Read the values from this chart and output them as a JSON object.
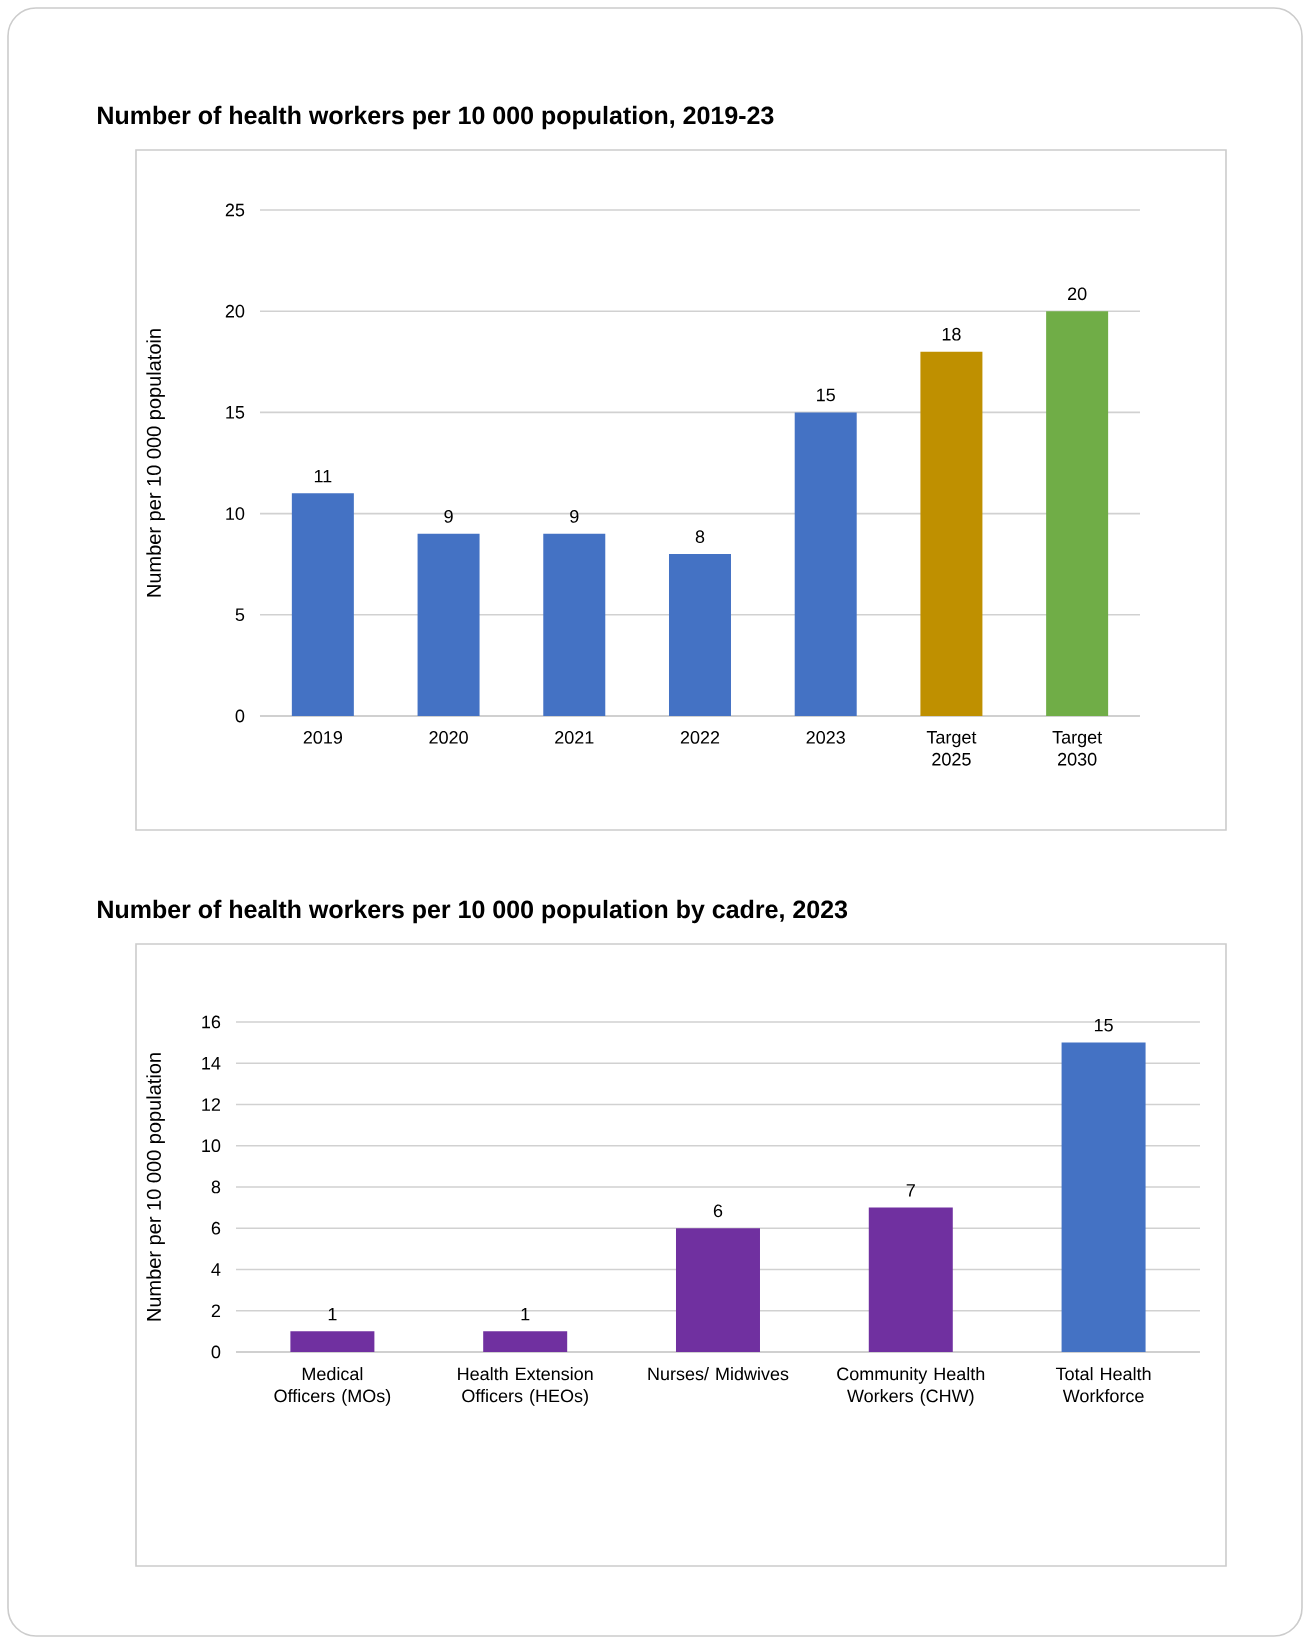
{
  "chart_data": [
    {
      "type": "bar",
      "title": "Number of health workers per 10 000 population, 2019-23",
      "ylabel": "Number per 10 000 populatoin",
      "categories": [
        "2019",
        "2020",
        "2021",
        "2022",
        "2023",
        "Target 2025",
        "Target 2030"
      ],
      "values": [
        11,
        9,
        9,
        8,
        15,
        18,
        20
      ],
      "colors": [
        "#4472c4",
        "#4472c4",
        "#4472c4",
        "#4472c4",
        "#4472c4",
        "#bf9000",
        "#70ad47"
      ],
      "ylim": [
        0,
        25
      ],
      "yticks": [
        0,
        5,
        10,
        15,
        20,
        25
      ],
      "grid": "y",
      "data_labels": true
    },
    {
      "type": "bar",
      "title": "Number of health workers per 10 000 population by cadre, 2023",
      "ylabel": "Number per 10 000 population",
      "categories": [
        "Medical Officers (MOs)",
        "Health Extension Officers (HEOs)",
        "Nurses/ Midwives",
        "Community Health Workers (CHW)",
        "Total Health Workforce"
      ],
      "values": [
        1,
        1,
        6,
        7,
        15
      ],
      "colors": [
        "#7030a0",
        "#7030a0",
        "#7030a0",
        "#7030a0",
        "#4472c4"
      ],
      "ylim": [
        0,
        16
      ],
      "yticks": [
        0,
        2,
        4,
        6,
        8,
        10,
        12,
        14,
        16
      ],
      "grid": "y",
      "data_labels": true
    }
  ]
}
